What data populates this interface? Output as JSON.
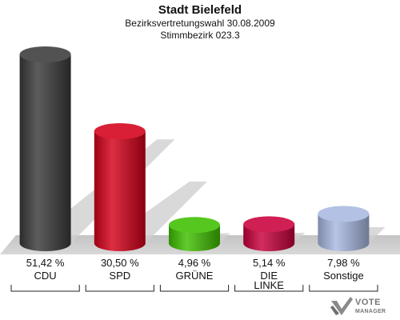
{
  "header": {
    "title": "Stadt Bielefeld",
    "subtitle": "Bezirksvertretungswahl 30.08.2009",
    "district": "Stimmbezirk 023.3"
  },
  "chart_data": {
    "type": "bar",
    "categories": [
      "CDU",
      "SPD",
      "GRÜNE",
      "DIE LINKE",
      "Sonstige"
    ],
    "values": [
      51.42,
      30.5,
      4.96,
      5.14,
      7.98
    ],
    "value_labels": [
      "51,42 %",
      "30,50 %",
      "4,96 %",
      "5,14 %",
      "7,98 %"
    ],
    "colors": [
      "#3a3a3a",
      "#d4001a",
      "#3fbf00",
      "#c8003c",
      "#a8b8e0"
    ],
    "ylim": [
      0,
      51.42
    ],
    "grid": false
  },
  "logo": {
    "line1": "VOTE",
    "line2": "MANAGER",
    "icon": "vote-check-icon"
  }
}
